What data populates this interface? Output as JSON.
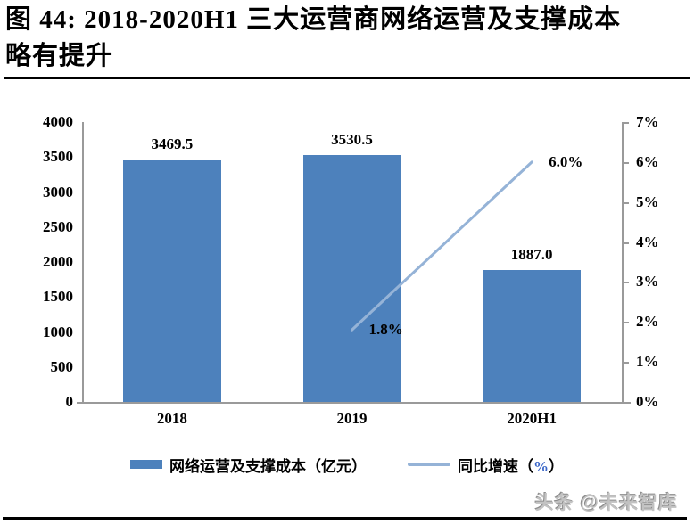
{
  "figure": {
    "title_line1": "图  44: 2018-2020H1 三大运营商网络运营及支撑成本",
    "title_line2": "略有提升",
    "watermark": "头条 @未来智库"
  },
  "colors": {
    "bar": "#4D81BC",
    "line": "#95B3D7",
    "axis": "#9A9A9A",
    "text": "#000000",
    "legend_percent": "#3A66C8"
  },
  "chart_data": {
    "type": "bar",
    "subtype": "bar-with-line-overlay",
    "categories": [
      "2018",
      "2019",
      "2020H1"
    ],
    "series": [
      {
        "name": "网络运营及支撑成本（亿元）",
        "type": "bar",
        "axis": "left",
        "values": [
          3469.5,
          3530.5,
          1887.0
        ],
        "data_labels": [
          "3469.5",
          "3530.5",
          "1887.0"
        ]
      },
      {
        "name": "同比增速（%）",
        "type": "line",
        "axis": "right",
        "values": [
          null,
          1.8,
          6.0
        ],
        "data_labels": [
          null,
          "1.8%",
          "6.0%"
        ]
      }
    ],
    "left_axis": {
      "min": 0,
      "max": 4000,
      "step": 500,
      "tick_labels_top_to_bottom": [
        "4000",
        "3500",
        "3000",
        "2500",
        "2000",
        "1500",
        "1000",
        "500",
        "0"
      ]
    },
    "right_axis": {
      "min": 0,
      "max": 7,
      "step": 1,
      "tick_labels_top_to_bottom": [
        "7%",
        "6%",
        "5%",
        "4%",
        "3%",
        "2%",
        "1%",
        "0%"
      ]
    },
    "grid": "off",
    "legend_position": "bottom",
    "legend": [
      {
        "swatch": "bar",
        "label": "网络运营及支撑成本（亿元）"
      },
      {
        "swatch": "line",
        "label_prefix": "同比增速（",
        "label_percent": "%",
        "label_suffix": "）"
      }
    ]
  }
}
